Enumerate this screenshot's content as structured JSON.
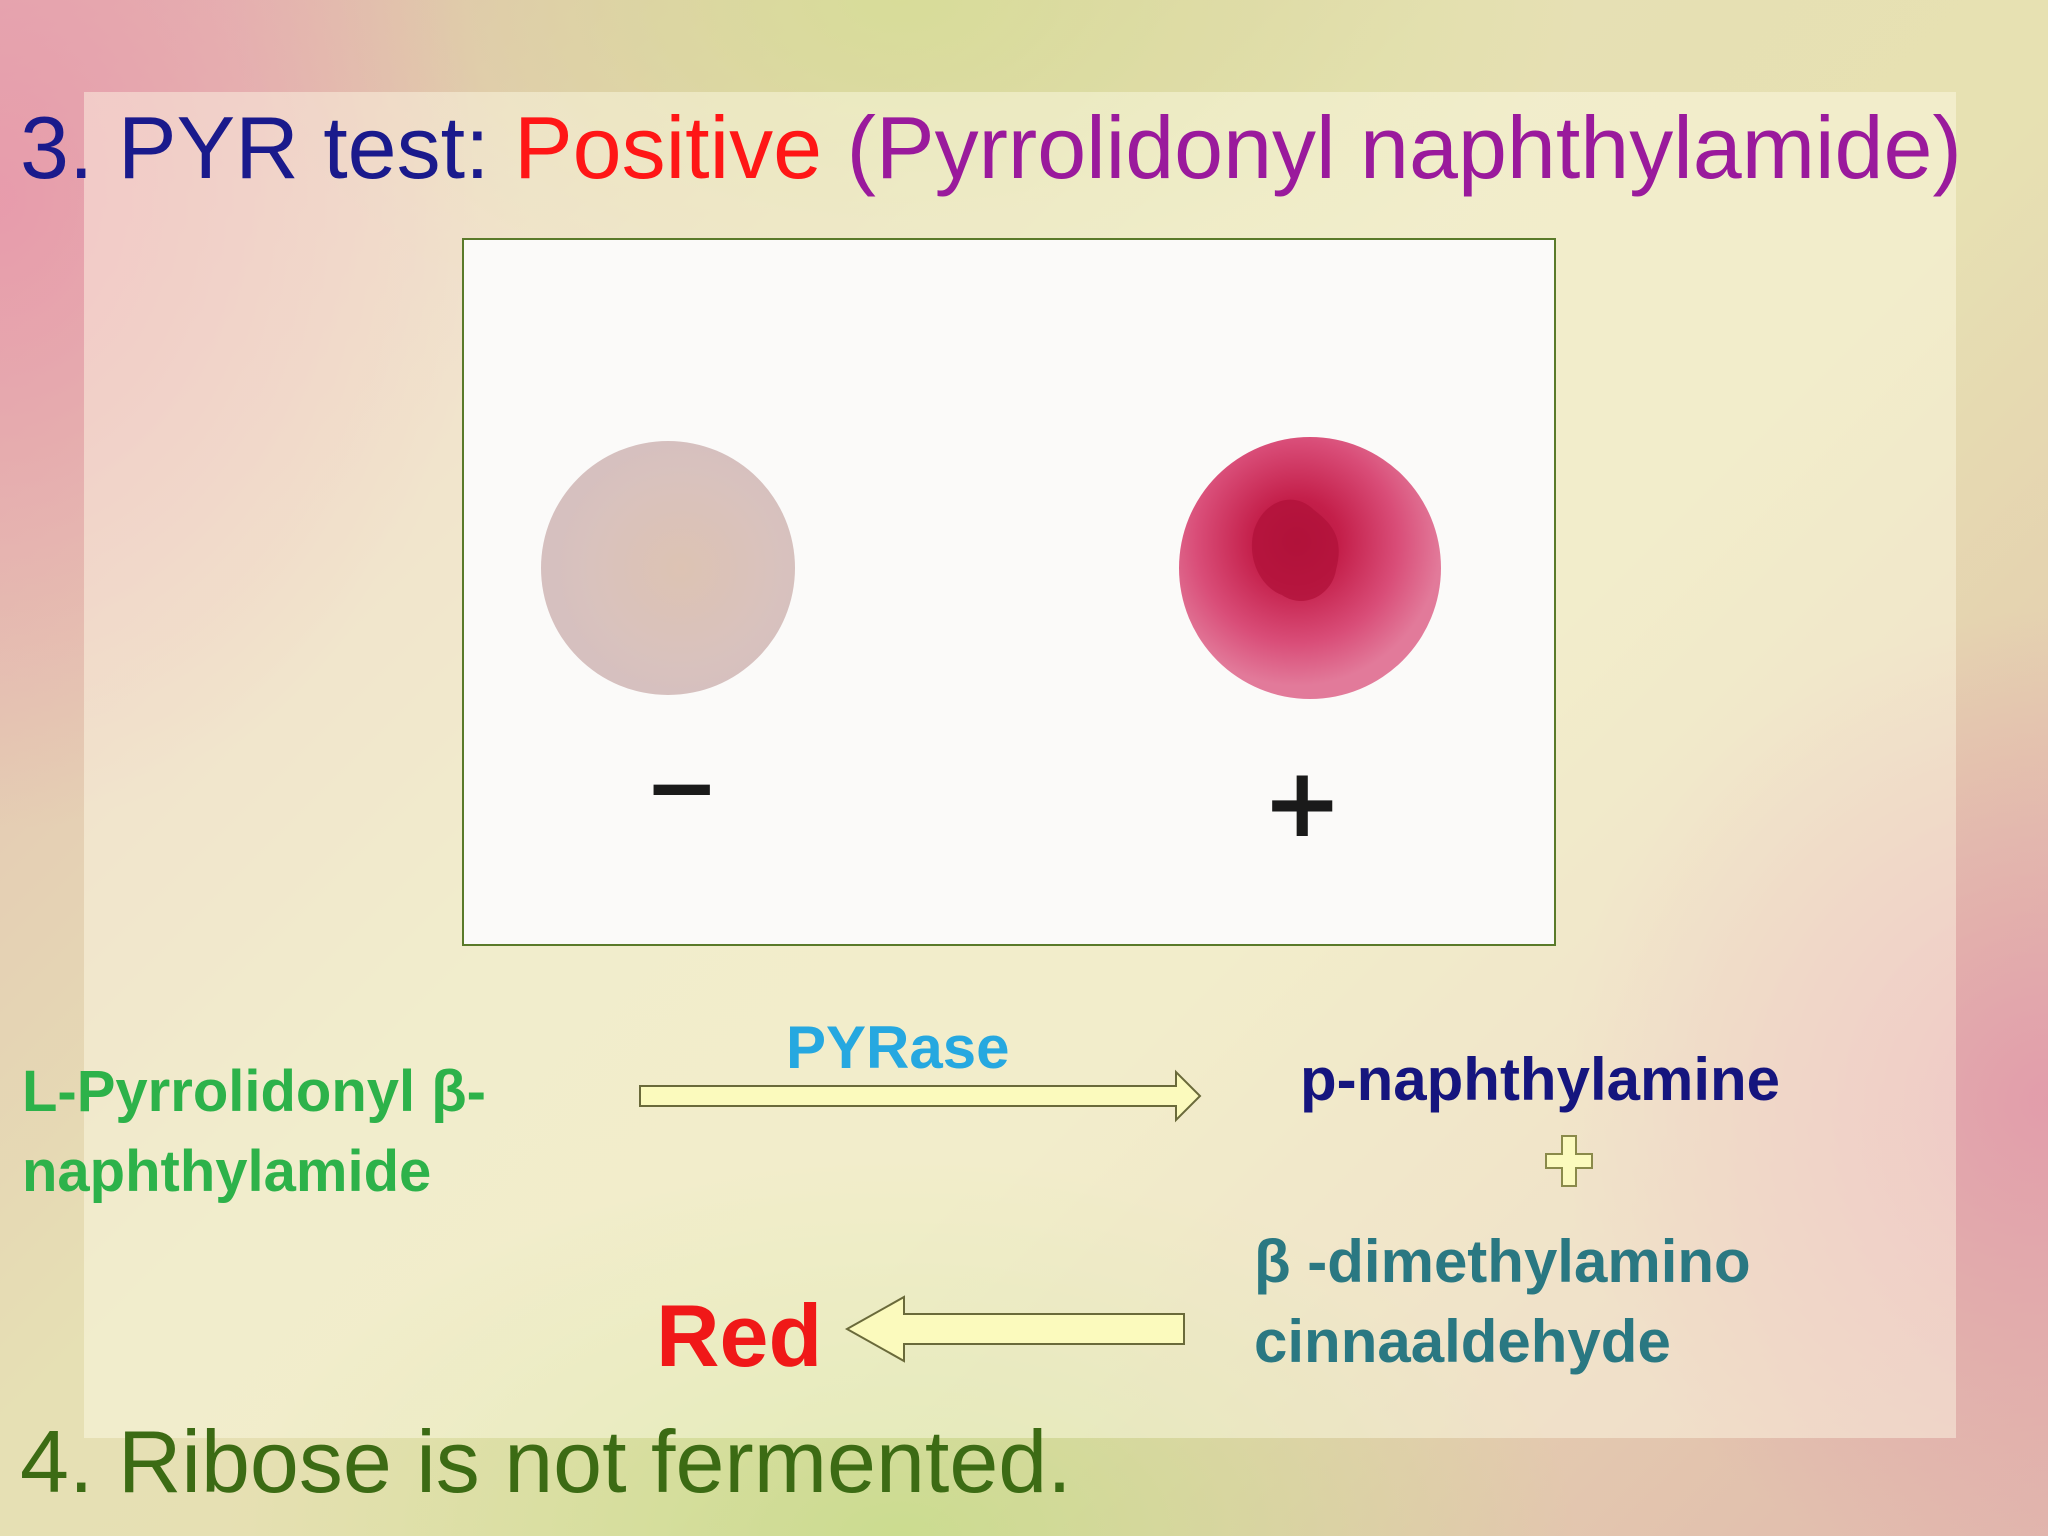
{
  "title": {
    "number_and_test": "3. PYR test:",
    "result_word": "Positive",
    "parenthetical": "(Pyrrolidonyl naphthylamide)"
  },
  "photo": {
    "negative_label": "−",
    "positive_label": "+"
  },
  "reaction": {
    "substrate_line1": "L-Pyrrolidonyl β-",
    "substrate_line2": "naphthylamide",
    "enzyme": "PYRase",
    "product": "p-naphthylamine",
    "reagent_line1": "β -dimethylamino",
    "reagent_line2": "cinnaaldehyde",
    "result": "Red"
  },
  "footer": {
    "text": "4. Ribose is not fermented."
  },
  "colors": {
    "title_blue": "#1a1a8c",
    "positive_red": "#ff1616",
    "paren_purple": "#9a1a9c",
    "substrate_green": "#2db24a",
    "enzyme_cyan": "#26a8e0",
    "product_navy": "#15157e",
    "reagent_teal": "#2a7882",
    "result_red": "#f01818",
    "footer_green": "#3c6b14",
    "arrow_fill": "#fbfabd"
  }
}
